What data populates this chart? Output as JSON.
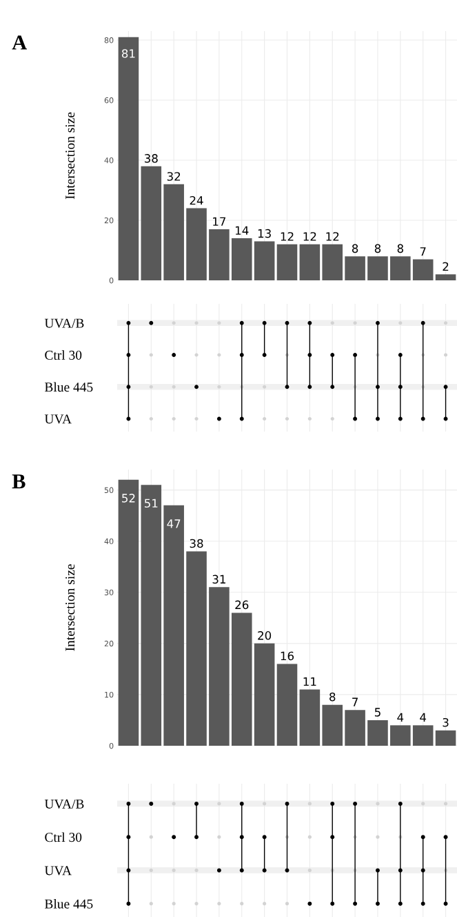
{
  "chart_data": [
    {
      "type": "bar",
      "title": "A",
      "ylabel": "Intersection size",
      "categories": [
        null,
        null,
        null,
        null,
        null,
        null,
        null,
        null,
        null,
        null,
        null,
        null,
        null,
        null,
        null
      ],
      "values": [
        81,
        38,
        32,
        24,
        17,
        14,
        13,
        12,
        12,
        12,
        8,
        8,
        8,
        7,
        2
      ],
      "color": "#595959",
      "ylim": [
        0,
        83
      ],
      "yticks": [
        0,
        20,
        40,
        60,
        80
      ],
      "grid": true,
      "data_labels": true
    },
    {
      "type": "other",
      "categories": [
        null,
        null,
        null,
        null,
        null,
        null,
        null,
        null,
        null,
        null,
        null,
        null,
        null,
        null,
        null
      ],
      "y_categories": [
        "UVA/B",
        "Ctrl 30",
        "Blue 445",
        "UVA"
      ],
      "color": "#000000",
      "cells": [
        [
          true,
          true,
          false,
          false,
          false,
          true,
          true,
          true,
          true,
          false,
          false,
          true,
          false,
          true,
          false
        ],
        [
          true,
          false,
          true,
          false,
          false,
          true,
          true,
          false,
          true,
          true,
          true,
          false,
          true,
          false,
          false
        ],
        [
          true,
          false,
          false,
          true,
          false,
          false,
          false,
          true,
          true,
          true,
          false,
          true,
          true,
          false,
          true
        ],
        [
          true,
          false,
          false,
          false,
          true,
          true,
          false,
          false,
          false,
          false,
          true,
          true,
          true,
          true,
          true
        ]
      ]
    },
    {
      "type": "bar",
      "title": "B",
      "ylabel": "Intersection size",
      "categories": [
        null,
        null,
        null,
        null,
        null,
        null,
        null,
        null,
        null,
        null,
        null,
        null,
        null,
        null,
        null
      ],
      "values": [
        52,
        51,
        47,
        38,
        31,
        26,
        20,
        16,
        11,
        8,
        7,
        5,
        4,
        4,
        3
      ],
      "color": "#595959",
      "ylim": [
        0,
        54
      ],
      "yticks": [
        0,
        10,
        20,
        30,
        40,
        50
      ],
      "grid": true,
      "data_labels": true
    },
    {
      "type": "other",
      "categories": [
        null,
        null,
        null,
        null,
        null,
        null,
        null,
        null,
        null,
        null,
        null,
        null,
        null,
        null,
        null
      ],
      "y_categories": [
        "UVA/B",
        "Ctrl 30",
        "UVA",
        "Blue 445"
      ],
      "color": "#000000",
      "cells": [
        [
          true,
          true,
          false,
          true,
          false,
          true,
          false,
          true,
          false,
          true,
          true,
          false,
          true,
          false,
          false
        ],
        [
          true,
          false,
          true,
          true,
          false,
          true,
          true,
          false,
          false,
          true,
          false,
          false,
          false,
          true,
          true
        ],
        [
          true,
          false,
          false,
          false,
          true,
          true,
          true,
          true,
          false,
          false,
          false,
          true,
          true,
          true,
          false
        ],
        [
          true,
          false,
          false,
          false,
          false,
          false,
          false,
          false,
          true,
          true,
          true,
          true,
          true,
          true,
          true
        ]
      ]
    }
  ]
}
